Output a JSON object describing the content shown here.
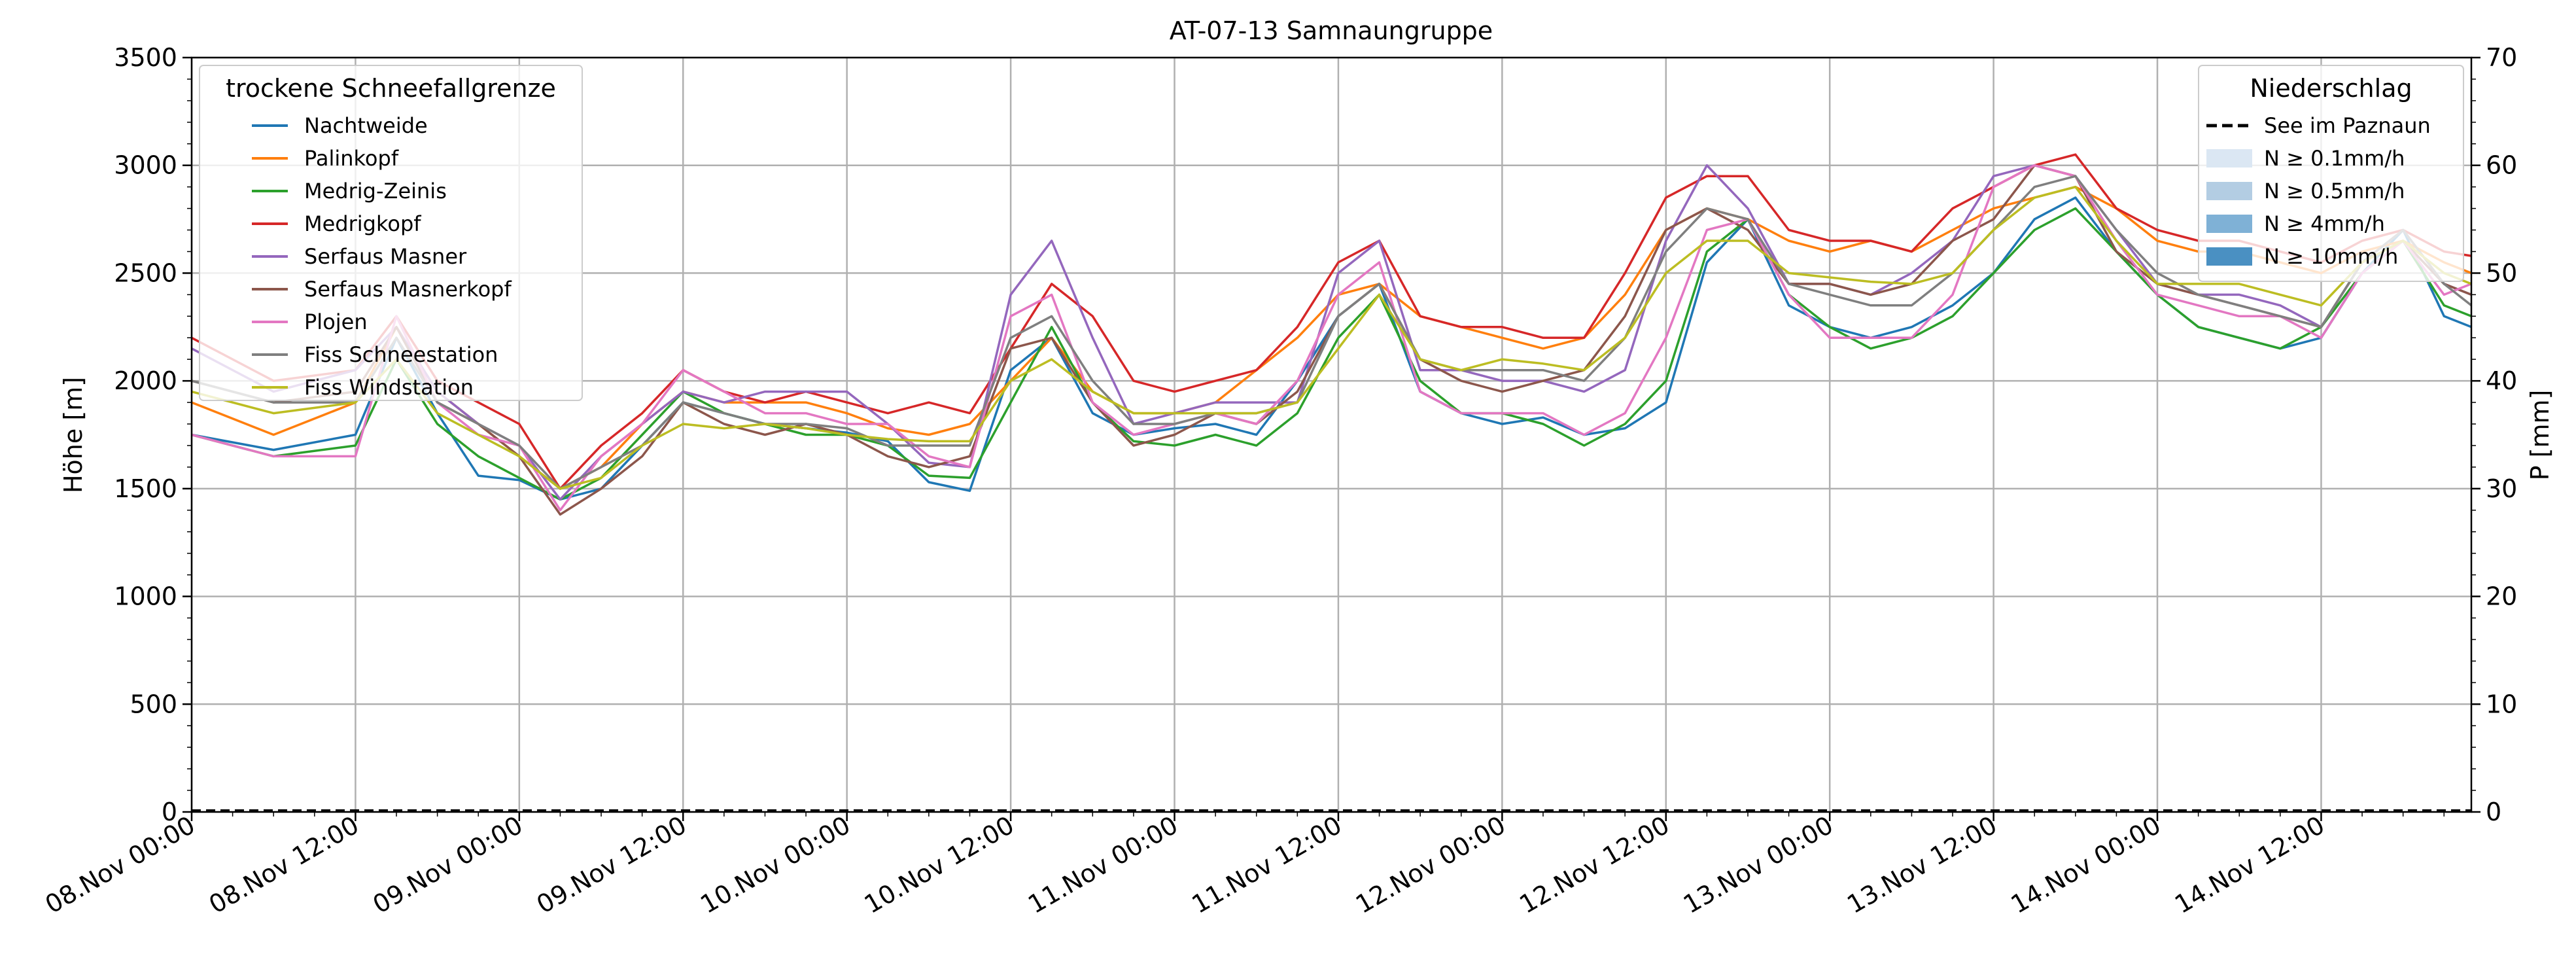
{
  "chart_data": {
    "type": "line",
    "title": "AT-07-13 Samnaungruppe",
    "ylabel": "Höhe [m]",
    "ylabel_right": "P [mm]",
    "x_ticks": [
      "08.Nov 00:00",
      "08.Nov 12:00",
      "09.Nov 00:00",
      "09.Nov 12:00",
      "10.Nov 00:00",
      "10.Nov 12:00",
      "11.Nov 00:00",
      "11.Nov 12:00",
      "12.Nov 00:00",
      "12.Nov 12:00",
      "13.Nov 00:00",
      "13.Nov 12:00",
      "14.Nov 00:00",
      "14.Nov 12:00"
    ],
    "x_range_hours": [
      0,
      167
    ],
    "ylim": [
      0,
      3500
    ],
    "y_ticks": [
      "0",
      "500",
      "1000",
      "1500",
      "2000",
      "2500",
      "3000",
      "3500"
    ],
    "ylim_right": [
      0,
      70
    ],
    "y_ticks_right": [
      "0",
      "10",
      "20",
      "30",
      "40",
      "50",
      "60",
      "70"
    ],
    "grid": true,
    "x_hours": [
      0,
      6,
      12,
      15,
      18,
      21,
      24,
      27,
      30,
      33,
      36,
      39,
      42,
      45,
      48,
      51,
      54,
      57,
      60,
      63,
      66,
      69,
      72,
      75,
      78,
      81,
      84,
      87,
      90,
      93,
      96,
      99,
      102,
      105,
      108,
      111,
      114,
      117,
      120,
      123,
      126,
      129,
      132,
      135,
      138,
      141,
      144,
      147,
      150,
      153,
      156,
      159,
      162,
      165,
      167
    ],
    "legend_left": {
      "title": "trockene Schneefallgrenze",
      "position": "top-left"
    },
    "series": [
      {
        "name": "Nachtweide",
        "color": "#1f77b4",
        "values": [
          1750,
          1680,
          1750,
          2200,
          1850,
          1560,
          1540,
          1450,
          1500,
          1700,
          1900,
          1850,
          1800,
          1780,
          1760,
          1720,
          1530,
          1490,
          2050,
          2200,
          1850,
          1750,
          1780,
          1800,
          1750,
          2000,
          2300,
          2450,
          1950,
          1850,
          1800,
          1830,
          1750,
          1780,
          1900,
          2550,
          2750,
          2350,
          2250,
          2200,
          2250,
          2350,
          2500,
          2750,
          2850,
          2600,
          2400,
          2250,
          2200,
          2150,
          2200,
          2500,
          2700,
          2300,
          2250
        ]
      },
      {
        "name": "Palinkopf",
        "color": "#ff7f0e",
        "values": [
          1900,
          1750,
          1900,
          2250,
          1950,
          1800,
          1650,
          1500,
          1600,
          1800,
          1950,
          1900,
          1900,
          1900,
          1850,
          1780,
          1750,
          1800,
          2000,
          2200,
          1950,
          1850,
          1850,
          1900,
          2050,
          2200,
          2400,
          2450,
          2300,
          2250,
          2200,
          2150,
          2200,
          2400,
          2700,
          2800,
          2750,
          2650,
          2600,
          2650,
          2600,
          2700,
          2800,
          2850,
          2900,
          2800,
          2650,
          2600,
          2600,
          2550,
          2500,
          2600,
          2650,
          2550,
          2500
        ]
      },
      {
        "name": "Medrig-Zeinis",
        "color": "#2ca02c",
        "values": [
          1750,
          1650,
          1700,
          2100,
          1800,
          1650,
          1550,
          1450,
          1550,
          1750,
          1950,
          1850,
          1800,
          1750,
          1750,
          1700,
          1560,
          1550,
          1900,
          2250,
          1900,
          1720,
          1700,
          1750,
          1700,
          1850,
          2200,
          2400,
          2000,
          1850,
          1850,
          1800,
          1700,
          1800,
          2000,
          2600,
          2750,
          2400,
          2250,
          2150,
          2200,
          2300,
          2500,
          2700,
          2800,
          2600,
          2400,
          2250,
          2200,
          2150,
          2250,
          2500,
          2650,
          2350,
          2300
        ]
      },
      {
        "name": "Medrigkopf",
        "color": "#d62728",
        "values": [
          2200,
          2000,
          2050,
          2300,
          2000,
          1900,
          1800,
          1500,
          1700,
          1850,
          2050,
          1950,
          1900,
          1950,
          1900,
          1850,
          1900,
          1850,
          2150,
          2450,
          2300,
          2000,
          1950,
          2000,
          2050,
          2250,
          2550,
          2650,
          2300,
          2250,
          2250,
          2200,
          2200,
          2500,
          2850,
          2950,
          2950,
          2700,
          2650,
          2650,
          2600,
          2800,
          2900,
          3000,
          3050,
          2800,
          2700,
          2650,
          2650,
          2600,
          2550,
          2650,
          2700,
          2600,
          2580
        ]
      },
      {
        "name": "Serfaus Masner",
        "color": "#9467bd",
        "values": [
          2150,
          1950,
          2050,
          2250,
          1950,
          1800,
          1700,
          1450,
          1650,
          1800,
          1950,
          1900,
          1950,
          1950,
          1950,
          1800,
          1620,
          1600,
          2400,
          2650,
          2200,
          1800,
          1850,
          1900,
          1900,
          1900,
          2500,
          2650,
          2050,
          2050,
          2000,
          2000,
          1950,
          2050,
          2650,
          3000,
          2800,
          2450,
          2450,
          2400,
          2500,
          2650,
          2950,
          3000,
          2950,
          2700,
          2450,
          2400,
          2400,
          2350,
          2250,
          2550,
          2700,
          2450,
          2400
        ]
      },
      {
        "name": "Serfaus Masnerkopf",
        "color": "#8c564b",
        "values": [
          2000,
          1900,
          1950,
          2250,
          1900,
          1800,
          1650,
          1380,
          1500,
          1650,
          1900,
          1800,
          1750,
          1800,
          1750,
          1650,
          1600,
          1650,
          2150,
          2200,
          1900,
          1700,
          1750,
          1850,
          1800,
          1950,
          2300,
          2450,
          2100,
          2000,
          1950,
          2000,
          2050,
          2300,
          2700,
          2800,
          2700,
          2450,
          2450,
          2400,
          2450,
          2650,
          2750,
          3000,
          2950,
          2600,
          2450,
          2400,
          2350,
          2300,
          2250,
          2550,
          2650,
          2450,
          2400
        ]
      },
      {
        "name": "Plojen",
        "color": "#e377c2",
        "values": [
          1750,
          1650,
          1650,
          2300,
          1900,
          1750,
          1700,
          1400,
          1650,
          1800,
          2050,
          1950,
          1850,
          1850,
          1800,
          1800,
          1650,
          1600,
          2300,
          2400,
          1900,
          1750,
          1800,
          1850,
          1800,
          2000,
          2400,
          2550,
          1950,
          1850,
          1850,
          1850,
          1750,
          1850,
          2200,
          2700,
          2750,
          2400,
          2200,
          2200,
          2200,
          2400,
          2900,
          3000,
          2950,
          2650,
          2400,
          2350,
          2300,
          2300,
          2200,
          2500,
          2650,
          2400,
          2450
        ]
      },
      {
        "name": "Fiss Schneestation",
        "color": "#7f7f7f",
        "values": [
          2000,
          1900,
          1900,
          2200,
          1900,
          1800,
          1700,
          1500,
          1600,
          1700,
          1900,
          1850,
          1800,
          1800,
          1780,
          1700,
          1700,
          1700,
          2200,
          2300,
          2000,
          1800,
          1800,
          1850,
          1850,
          1900,
          2300,
          2450,
          2100,
          2050,
          2050,
          2050,
          2000,
          2200,
          2600,
          2800,
          2750,
          2450,
          2400,
          2350,
          2350,
          2500,
          2700,
          2900,
          2950,
          2700,
          2500,
          2400,
          2350,
          2300,
          2250,
          2550,
          2700,
          2450,
          2350
        ]
      },
      {
        "name": "Fiss Windstation",
        "color": "#bcbd22",
        "values": [
          1950,
          1850,
          1900,
          2100,
          1850,
          1750,
          1650,
          1500,
          1550,
          1700,
          1800,
          1780,
          1800,
          1780,
          1750,
          1730,
          1720,
          1720,
          2000,
          2100,
          1950,
          1850,
          1850,
          1850,
          1850,
          1900,
          2150,
          2400,
          2100,
          2050,
          2100,
          2080,
          2050,
          2200,
          2500,
          2650,
          2650,
          2500,
          2480,
          2460,
          2450,
          2500,
          2700,
          2850,
          2900,
          2650,
          2450,
          2450,
          2450,
          2400,
          2350,
          2550,
          2650,
          2500,
          2450
        ]
      }
    ],
    "legend_right": {
      "title": "Niederschlag",
      "position": "top-right",
      "line_entry": {
        "label": "See im Paznaun",
        "color": "#000000",
        "style": "dashed"
      },
      "bar_entries": [
        {
          "label": "N ≥ 0.1mm/h",
          "color": "#dbe7f3"
        },
        {
          "label": "N ≥ 0.5mm/h",
          "color": "#b3cde3"
        },
        {
          "label": "N ≥ 4mm/h",
          "color": "#7fb1d6"
        },
        {
          "label": "N ≥ 10mm/h",
          "color": "#4a90c2"
        }
      ]
    },
    "precip_series": {
      "name": "See im Paznaun",
      "values_mm": [
        0
      ]
    }
  }
}
